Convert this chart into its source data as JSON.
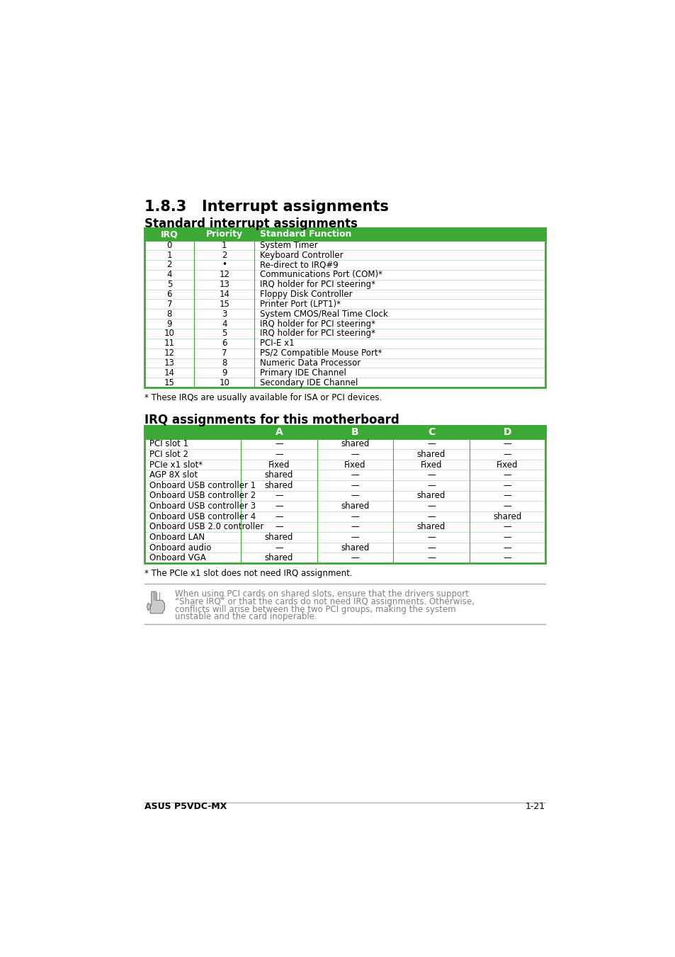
{
  "page_bg": "#ffffff",
  "header_title": "1.8.3   Interrupt assignments",
  "section1_title": "Standard interrupt assignments",
  "section2_title": "IRQ assignments for this motherboard",
  "table1_header": [
    "IRQ",
    "Priority",
    "Standard Function"
  ],
  "table1_rows": [
    [
      "0",
      "1",
      "System Timer"
    ],
    [
      "1",
      "2",
      "Keyboard Controller"
    ],
    [
      "2",
      "•",
      "Re-direct to IRQ#9"
    ],
    [
      "4",
      "12",
      "Communications Port (COM)*"
    ],
    [
      "5",
      "13",
      "IRQ holder for PCI steering*"
    ],
    [
      "6",
      "14",
      "Floppy Disk Controller"
    ],
    [
      "7",
      "15",
      "Printer Port (LPT1)*"
    ],
    [
      "8",
      "3",
      "System CMOS/Real Time Clock"
    ],
    [
      "9",
      "4",
      "IRQ holder for PCI steering*"
    ],
    [
      "10",
      "5",
      "IRQ holder for PCI steering*"
    ],
    [
      "11",
      "6",
      "PCI-E x1"
    ],
    [
      "12",
      "7",
      "PS/2 Compatible Mouse Port*"
    ],
    [
      "13",
      "8",
      "Numeric Data Processor"
    ],
    [
      "14",
      "9",
      "Primary IDE Channel"
    ],
    [
      "15",
      "10",
      "Secondary IDE Channel"
    ]
  ],
  "table1_note": "* These IRQs are usually available for ISA or PCI devices.",
  "table2_header": [
    "",
    "A",
    "B",
    "C",
    "D"
  ],
  "table2_rows": [
    [
      "PCI slot 1",
      "—",
      "shared",
      "—",
      "—"
    ],
    [
      "PCI slot 2",
      "—",
      "—",
      "shared",
      "—"
    ],
    [
      "PCIe x1 slot*",
      "Fixed",
      "Fixed",
      "Fixed",
      "Fixed"
    ],
    [
      "AGP 8X slot",
      "shared",
      "—",
      "—",
      "—"
    ],
    [
      "Onboard USB controller 1",
      "shared",
      "—",
      "—",
      "—"
    ],
    [
      "Onboard USB controller 2",
      "—",
      "—",
      "shared",
      "—"
    ],
    [
      "Onboard USB controller 3",
      "—",
      "shared",
      "—",
      "—"
    ],
    [
      "Onboard USB controller 4",
      "—",
      "—",
      "—",
      "shared"
    ],
    [
      "Onboard USB 2.0 controller",
      "—",
      "—",
      "shared",
      "—"
    ],
    [
      "Onboard LAN",
      "shared",
      "—",
      "—",
      "—"
    ],
    [
      "Onboard audio",
      "—",
      "shared",
      "—",
      "—"
    ],
    [
      "Onboard VGA",
      "shared",
      "—",
      "—",
      "—"
    ]
  ],
  "table2_note": "* The PCIe x1 slot does not need IRQ assignment.",
  "note_lines": [
    "When using PCI cards on shared slots, ensure that the drivers support",
    "“Share IRQ” or that the cards do not need IRQ assignments. Otherwise,",
    "conflicts will arise between the two PCI groups, making the system",
    "unstable and the card inoperable."
  ],
  "footer_left": "ASUS P5VDC-MX",
  "footer_right": "1-21",
  "header_color": "#3aaa35",
  "header_text_color": "#ffffff",
  "table_border_color": "#3aaa35",
  "body_text_color": "#000000",
  "note_text_color": "#808080"
}
